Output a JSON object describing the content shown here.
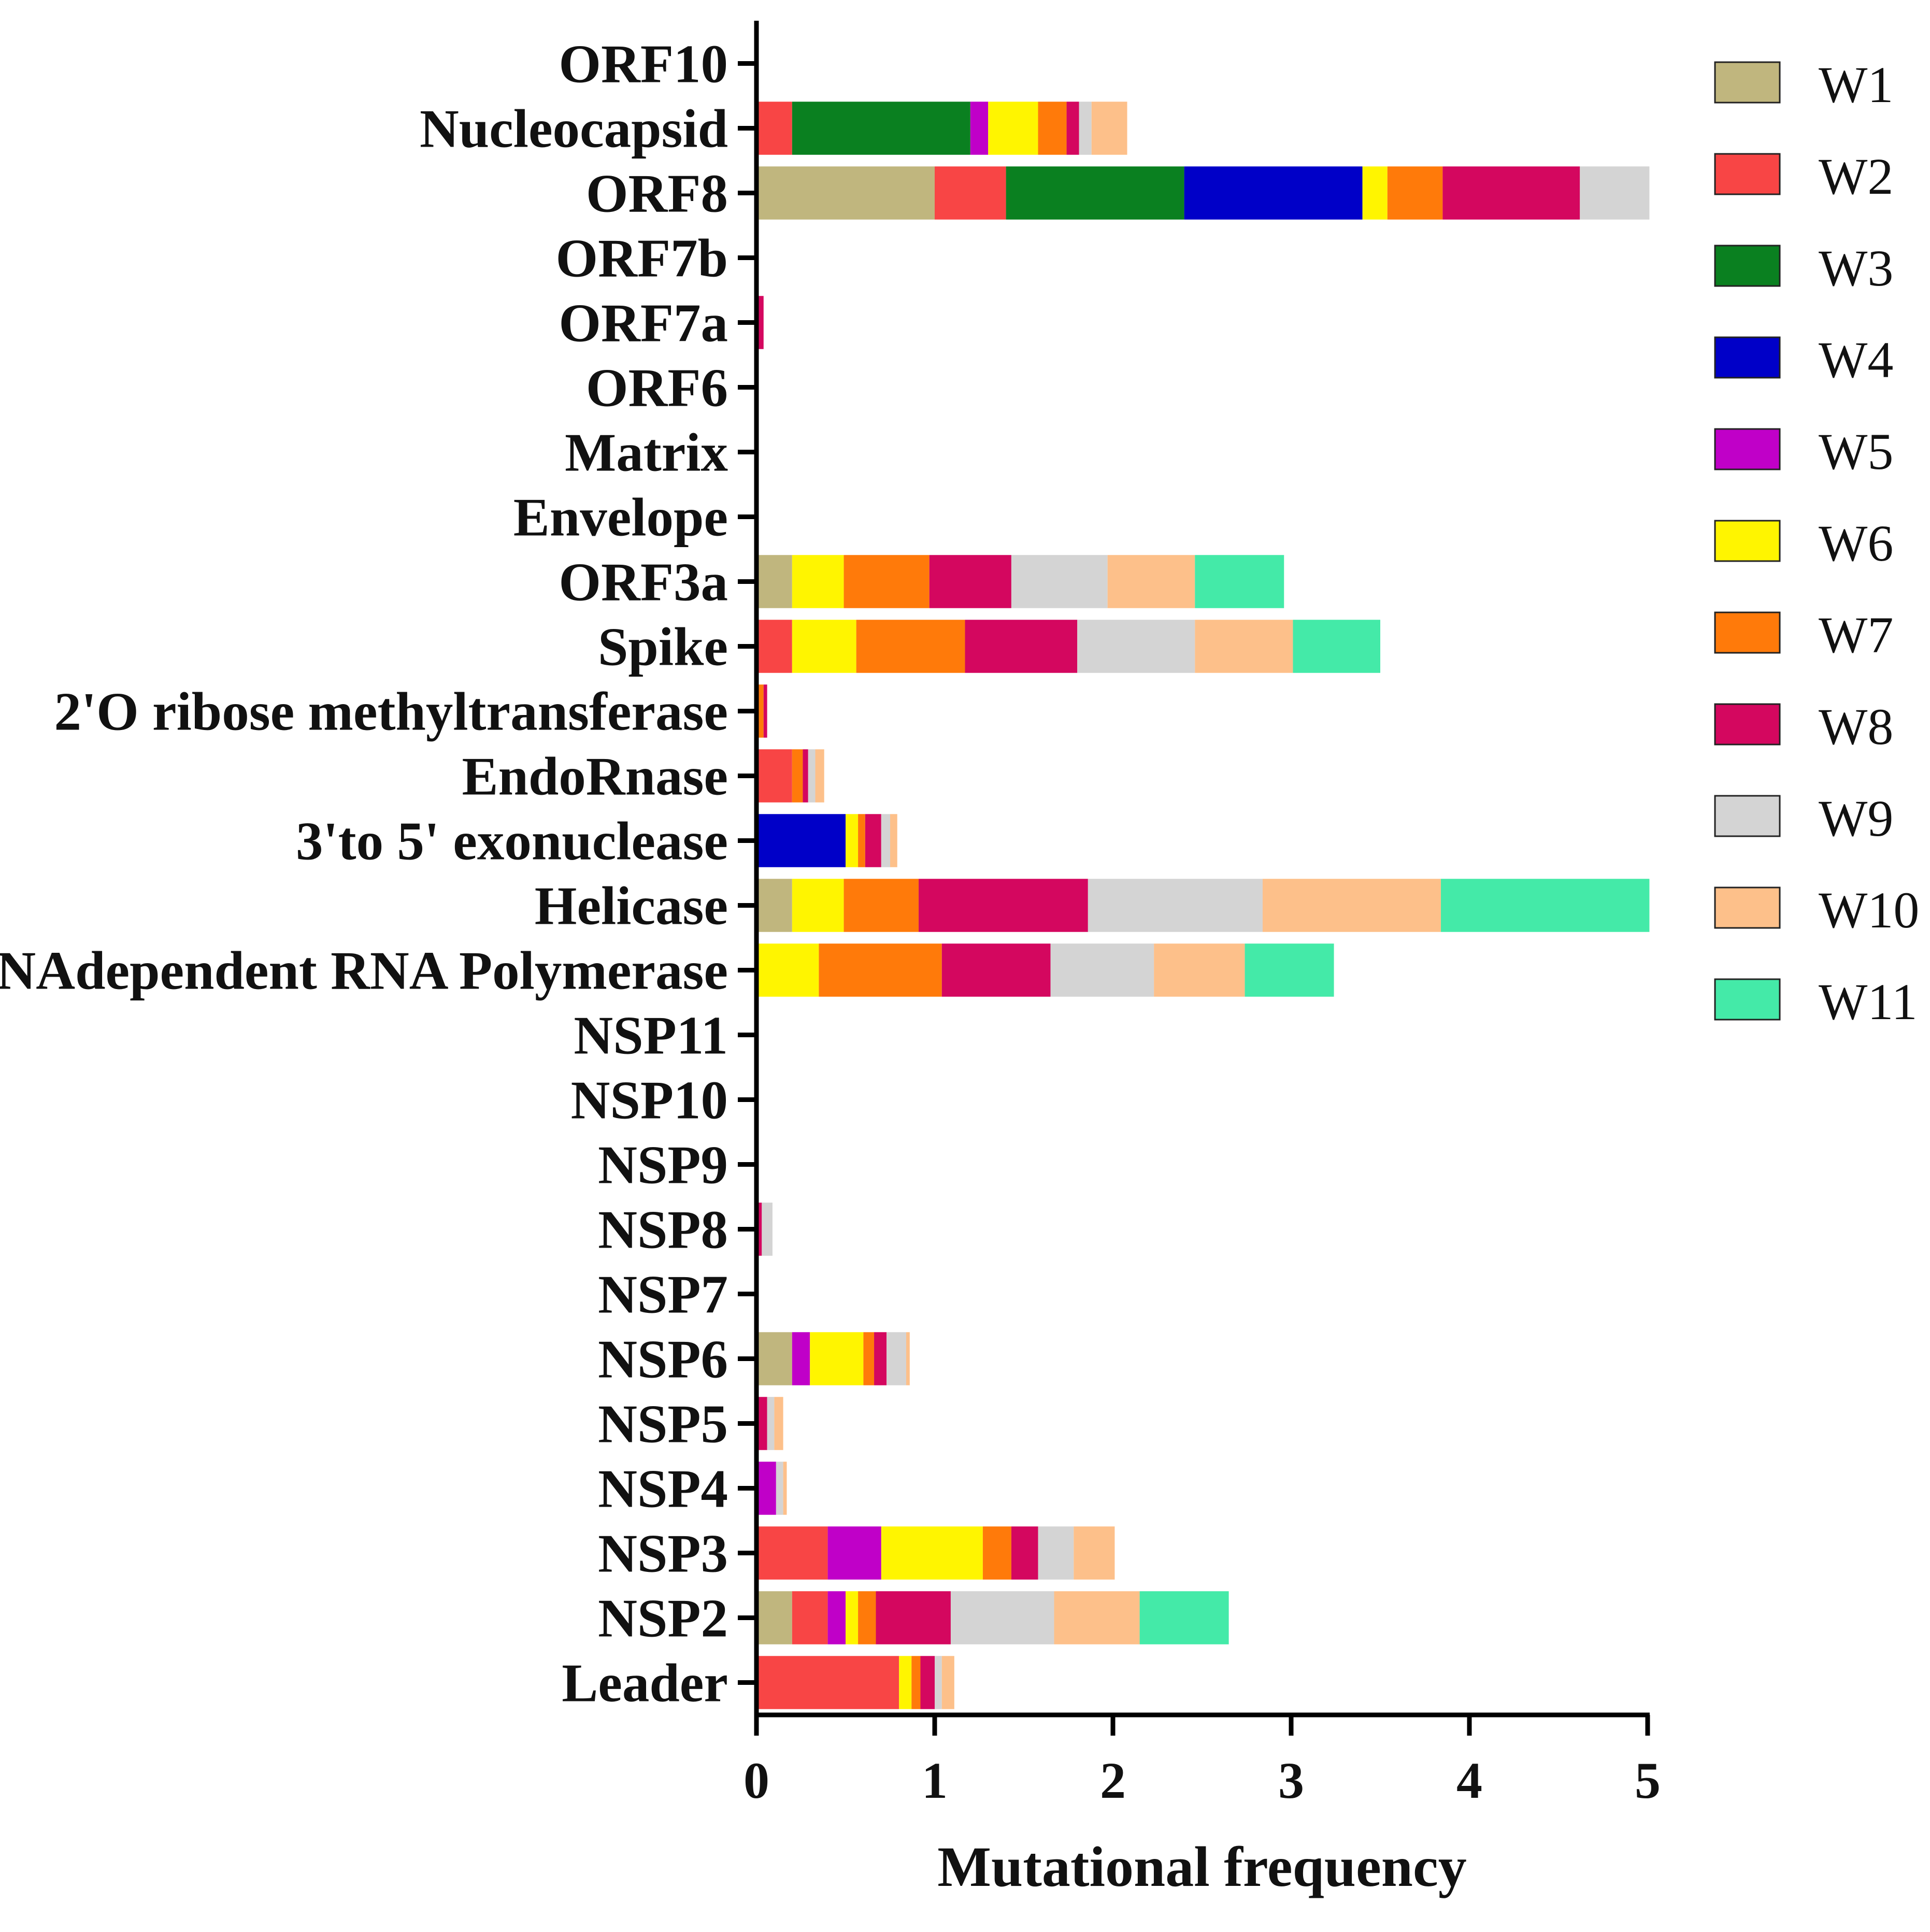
{
  "chart_data": {
    "type": "bar",
    "orientation": "horizontal",
    "stacked": true,
    "title": "",
    "xlabel": "Mutational frequency",
    "ylabel": "",
    "xlim": [
      0,
      5
    ],
    "xticks": [
      "0",
      "1",
      "2",
      "3",
      "4",
      "5"
    ],
    "grid": false,
    "legend_position": "right",
    "categories": [
      "ORF10",
      "Nucleocapsid",
      "ORF8",
      "ORF7b",
      "ORF7a",
      "ORF6",
      "Matrix",
      "Envelope",
      "ORF3a",
      "Spike",
      "2'O ribose methyltransferase",
      "EndoRnase",
      "3'to 5' exonuclease",
      "Helicase",
      "RNAdependent RNA Polymerase",
      "NSP11",
      "NSP10",
      "NSP9",
      "NSP8",
      "NSP7",
      "NSP6",
      "NSP5",
      "NSP4",
      "NSP3",
      "NSP2",
      "Leader"
    ],
    "series": [
      {
        "name": "W1",
        "color": "#C0B67E",
        "values": [
          0,
          0,
          1.0,
          0,
          0,
          0,
          0,
          0,
          0.2,
          0,
          0,
          0,
          0,
          0.2,
          0,
          0,
          0,
          0,
          0,
          0,
          0.2,
          0,
          0,
          0,
          0.2,
          0
        ]
      },
      {
        "name": "W2",
        "color": "#F84545",
        "values": [
          0,
          0.2,
          0.4,
          0,
          0,
          0,
          0,
          0,
          0,
          0.2,
          0,
          0.2,
          0,
          0,
          0,
          0,
          0,
          0,
          0,
          0,
          0,
          0,
          0,
          0.4,
          0.2,
          0.8
        ]
      },
      {
        "name": "W3",
        "color": "#0A8020",
        "values": [
          0,
          1.0,
          1.0,
          0,
          0,
          0,
          0,
          0,
          0,
          0,
          0,
          0,
          0,
          0,
          0,
          0,
          0,
          0,
          0,
          0,
          0,
          0,
          0,
          0,
          0,
          0
        ]
      },
      {
        "name": "W4",
        "color": "#0000C8",
        "values": [
          0,
          0,
          1.0,
          0,
          0,
          0,
          0,
          0,
          0,
          0,
          0,
          0,
          0.5,
          0,
          0,
          0,
          0,
          0,
          0,
          0,
          0,
          0,
          0,
          0,
          0,
          0
        ]
      },
      {
        "name": "W5",
        "color": "#C000C8",
        "values": [
          0,
          0.1,
          0,
          0,
          0,
          0,
          0,
          0,
          0,
          0,
          0,
          0,
          0,
          0,
          0,
          0,
          0,
          0,
          0,
          0,
          0.1,
          0,
          0.11,
          0.3,
          0.1,
          0
        ]
      },
      {
        "name": "W6",
        "color": "#FFF500",
        "values": [
          0,
          0.28,
          0.14,
          0,
          0,
          0,
          0,
          0,
          0.29,
          0.36,
          0,
          0,
          0.07,
          0.29,
          0.35,
          0,
          0,
          0,
          0,
          0,
          0.3,
          0,
          0,
          0.57,
          0.07,
          0.07
        ]
      },
      {
        "name": "W7",
        "color": "#FF7A0A",
        "values": [
          0,
          0.16,
          0.31,
          0,
          0,
          0,
          0.01,
          0,
          0.48,
          0.61,
          0.04,
          0.06,
          0.04,
          0.42,
          0.69,
          0,
          0,
          0,
          0,
          0,
          0.06,
          0,
          0,
          0.16,
          0.1,
          0.05
        ]
      },
      {
        "name": "W8",
        "color": "#D4075F",
        "values": [
          0,
          0.07,
          0.77,
          0,
          0.04,
          0,
          0,
          0,
          0.46,
          0.63,
          0.02,
          0.03,
          0.09,
          0.95,
          0.61,
          0,
          0,
          0,
          0.03,
          0,
          0.07,
          0.06,
          0,
          0.15,
          0.42,
          0.08
        ]
      },
      {
        "name": "W9",
        "color": "#D4D4D4",
        "values": [
          0,
          0.07,
          0.39,
          0,
          0,
          0,
          0,
          0,
          0.54,
          0.66,
          0,
          0.04,
          0.05,
          0.98,
          0.58,
          0,
          0,
          0,
          0.06,
          0,
          0.11,
          0.04,
          0.04,
          0.2,
          0.58,
          0.04
        ]
      },
      {
        "name": "W10",
        "color": "#FDC08A",
        "values": [
          0,
          0.2,
          0,
          0,
          0,
          0,
          0,
          0,
          0.49,
          0.55,
          0,
          0.05,
          0.04,
          1.0,
          0.51,
          0,
          0,
          0,
          0,
          0,
          0.02,
          0.05,
          0.02,
          0.23,
          0.48,
          0.07
        ]
      },
      {
        "name": "W11",
        "color": "#44EAA8",
        "values": [
          0,
          0,
          0,
          0,
          0,
          0,
          0,
          0,
          0.5,
          0.49,
          0,
          0,
          0,
          1.17,
          0.5,
          0,
          0,
          0,
          0,
          0,
          0,
          0,
          0,
          0,
          0.5,
          0
        ]
      }
    ]
  }
}
